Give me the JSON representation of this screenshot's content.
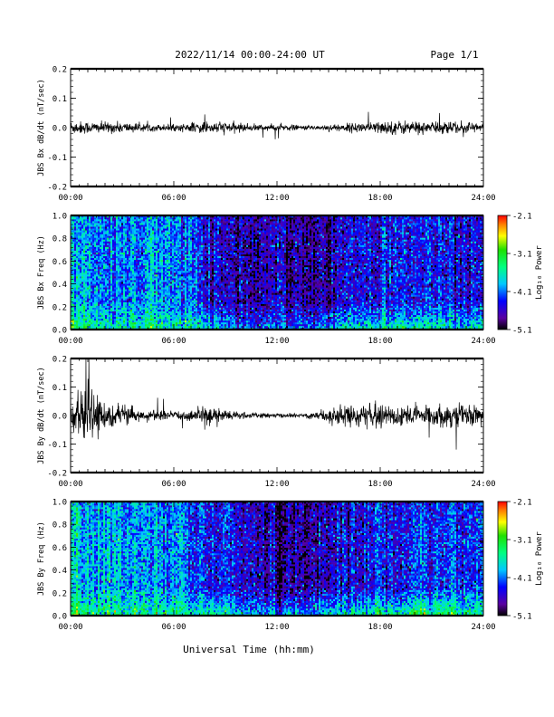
{
  "header": {
    "title": "2022/11/14  00:00-24:00 UT",
    "page": "Page 1/1"
  },
  "footer": {
    "xlabel": "Universal Time (hh:mm)"
  },
  "colorbar": {
    "label": "Log₁₀ Power",
    "ticks": [
      "-2.1",
      "-3.1",
      "-4.1",
      "-5.1"
    ],
    "range": [
      -5.1,
      -2.1
    ]
  },
  "chart_data": [
    {
      "type": "line",
      "title": "",
      "ylabel": "JBS Bx dB/dt (nT/sec)",
      "xlabel": "",
      "xlim": [
        0,
        24
      ],
      "ylim": [
        -0.2,
        0.2
      ],
      "xticks": [
        "00:00",
        "06:00",
        "12:00",
        "18:00",
        "24:00"
      ],
      "yticks": [
        "0.2",
        "0.1",
        "0.0",
        "-0.1",
        "-0.2"
      ],
      "series": [
        {
          "x_hours": [
            0,
            1,
            2,
            3,
            4,
            5,
            6,
            7,
            8,
            9,
            10,
            11,
            12,
            13,
            14,
            15,
            16,
            17,
            18,
            19,
            20,
            21,
            22,
            23,
            24
          ],
          "amplitude": [
            0.025,
            0.022,
            0.02,
            0.02,
            0.015,
            0.012,
            0.012,
            0.015,
            0.025,
            0.02,
            0.015,
            0.012,
            0.012,
            0.01,
            0.008,
            0.012,
            0.015,
            0.02,
            0.022,
            0.025,
            0.025,
            0.02,
            0.025,
            0.022,
            0.02
          ]
        }
      ]
    },
    {
      "type": "heatmap",
      "title": "",
      "ylabel": "JBS Bx Freq (Hz)",
      "xlim": [
        0,
        24
      ],
      "ylim": [
        0.0,
        1.0
      ],
      "xticks": [
        "00:00",
        "06:00",
        "12:00",
        "18:00",
        "24:00"
      ],
      "yticks": [
        "1.0",
        "0.8",
        "0.6",
        "0.4",
        "0.2",
        "0.0"
      ],
      "colorscale": "rainbow",
      "crange": [
        -5.1,
        -2.1
      ],
      "hourly_high_freq_log_power": [
        -4.0,
        -4.0,
        -4.05,
        -4.05,
        -4.1,
        -4.05,
        -4.0,
        -4.2,
        -4.6,
        -4.6,
        -4.65,
        -4.7,
        -4.7,
        -4.75,
        -4.75,
        -4.7,
        -4.6,
        -4.5,
        -4.5,
        -4.45,
        -4.45,
        -4.4,
        -4.4,
        -4.4,
        -4.4
      ],
      "hourly_low_freq_log_power": [
        -3.2,
        -3.3,
        -3.4,
        -3.4,
        -3.5,
        -3.5,
        -3.5,
        -3.5,
        -3.6,
        -3.8,
        -3.9,
        -4.0,
        -4.1,
        -4.1,
        -4.0,
        -3.8,
        -3.6,
        -3.6,
        -3.5,
        -3.5,
        -3.4,
        -3.4,
        -3.5,
        -3.5,
        -3.5
      ]
    },
    {
      "type": "line",
      "title": "",
      "ylabel": "JBS By dB/dt (nT/sec)",
      "xlabel": "",
      "xlim": [
        0,
        24
      ],
      "ylim": [
        -0.2,
        0.2
      ],
      "xticks": [
        "00:00",
        "06:00",
        "12:00",
        "18:00",
        "24:00"
      ],
      "yticks": [
        "0.2",
        "0.1",
        "0.0",
        "-0.1",
        "-0.2"
      ],
      "series": [
        {
          "x_hours": [
            0,
            1,
            2,
            3,
            4,
            5,
            6,
            7,
            8,
            9,
            10,
            11,
            12,
            13,
            14,
            15,
            16,
            17,
            18,
            19,
            20,
            21,
            22,
            23,
            24
          ],
          "amplitude": [
            0.05,
            0.09,
            0.05,
            0.04,
            0.02,
            0.018,
            0.015,
            0.02,
            0.045,
            0.02,
            0.012,
            0.01,
            0.008,
            0.008,
            0.012,
            0.03,
            0.04,
            0.04,
            0.04,
            0.045,
            0.04,
            0.035,
            0.045,
            0.04,
            0.035
          ]
        }
      ]
    },
    {
      "type": "heatmap",
      "title": "",
      "ylabel": "JBS By Freq (Hz)",
      "xlim": [
        0,
        24
      ],
      "ylim": [
        0.0,
        1.0
      ],
      "xticks": [
        "00:00",
        "06:00",
        "12:00",
        "18:00",
        "24:00"
      ],
      "yticks": [
        "1.0",
        "0.8",
        "0.6",
        "0.4",
        "0.2",
        "0.0"
      ],
      "colorscale": "rainbow",
      "crange": [
        -5.1,
        -2.1
      ],
      "hourly_high_freq_log_power": [
        -3.8,
        -3.9,
        -3.9,
        -4.0,
        -4.05,
        -4.05,
        -4.1,
        -4.2,
        -4.4,
        -4.5,
        -4.6,
        -4.7,
        -4.75,
        -4.75,
        -4.7,
        -4.6,
        -4.5,
        -4.45,
        -4.4,
        -4.35,
        -4.35,
        -4.3,
        -4.3,
        -4.3,
        -4.3
      ],
      "hourly_low_freq_log_power": [
        -3.0,
        -3.1,
        -3.3,
        -3.4,
        -3.4,
        -3.5,
        -3.5,
        -3.4,
        -3.3,
        -3.6,
        -3.7,
        -3.8,
        -3.8,
        -3.9,
        -3.8,
        -3.6,
        -3.5,
        -3.4,
        -3.3,
        -3.2,
        -3.1,
        -3.1,
        -3.2,
        -3.2,
        -3.3
      ]
    }
  ]
}
